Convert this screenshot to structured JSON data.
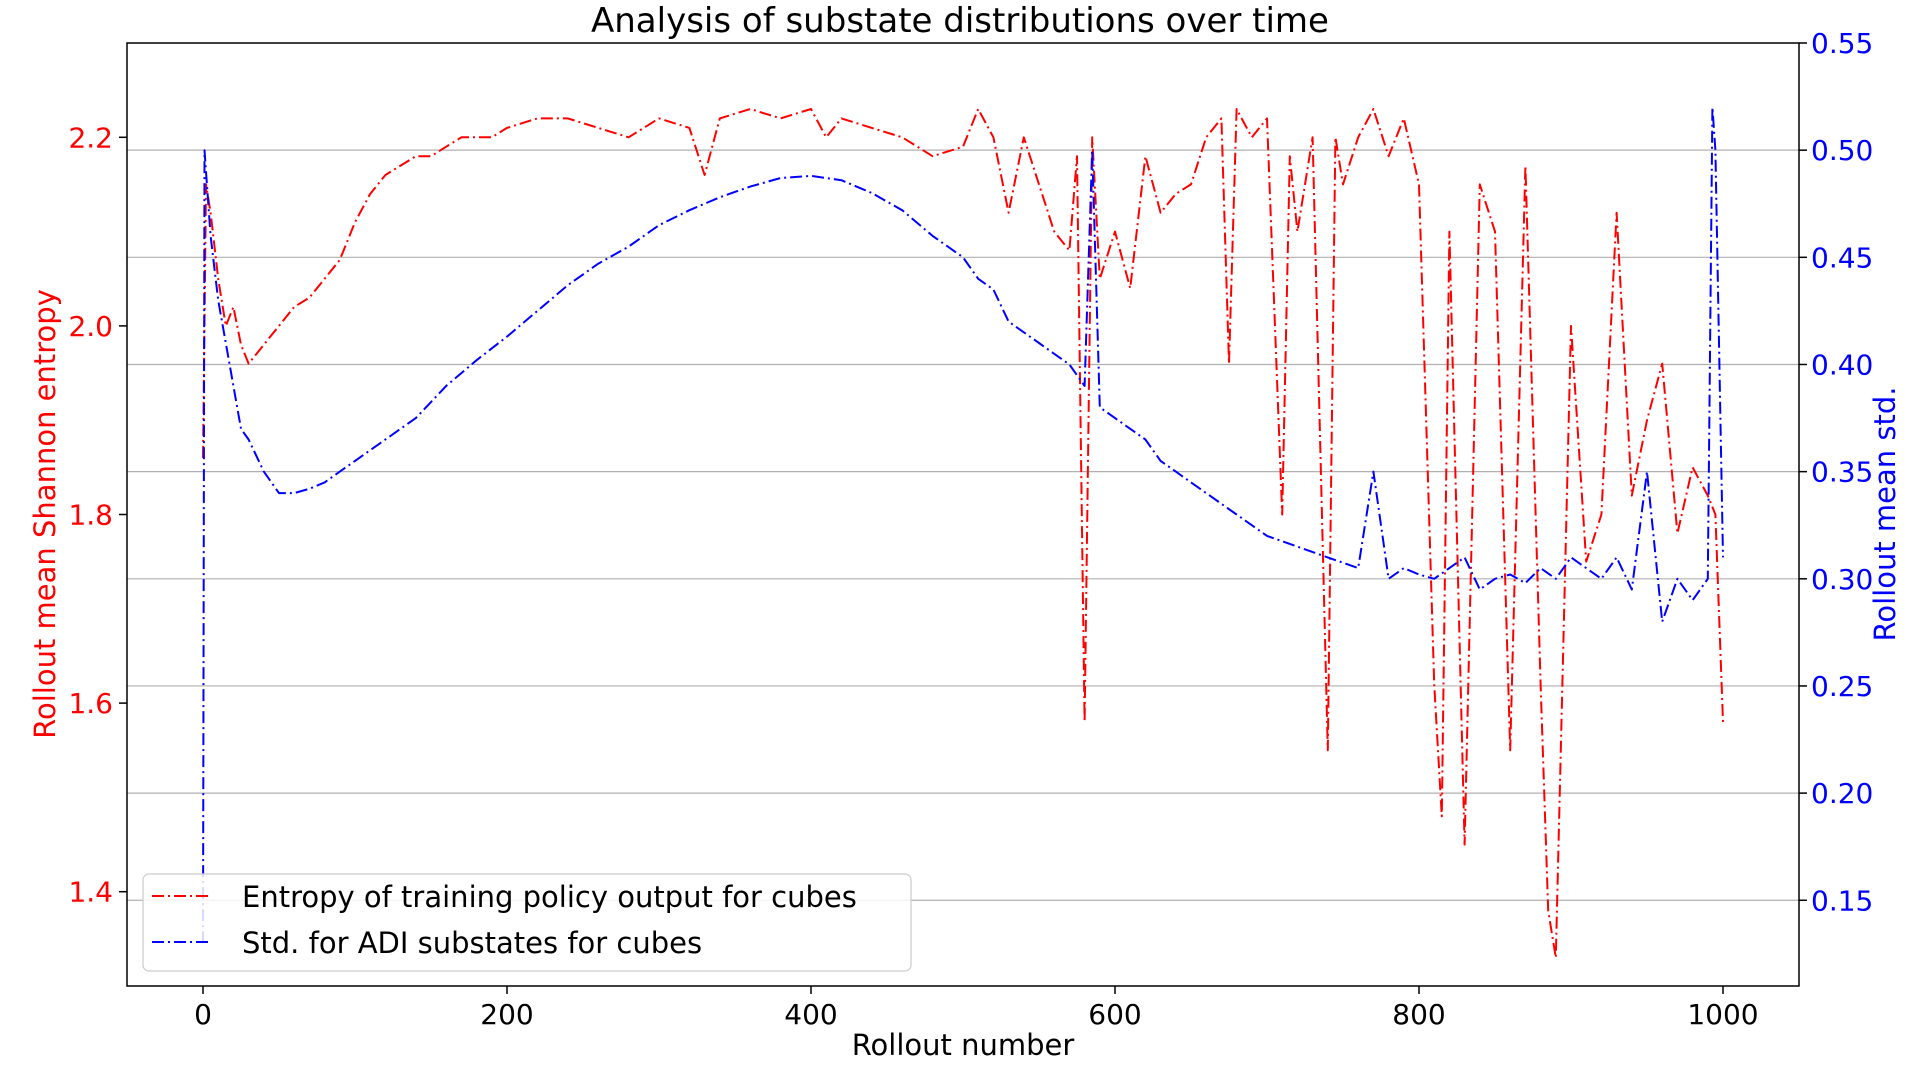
{
  "chart_data": {
    "type": "line",
    "title": "Analysis of substate distributions over time",
    "xlabel": "Rollout number",
    "ylabel_left": "Rollout mean Shannon entropy",
    "ylabel_right": "Rollout mean std.",
    "xlim": [
      -50,
      1050
    ],
    "ylim_left": [
      1.3,
      2.3
    ],
    "ylim_right": [
      0.11,
      0.55
    ],
    "x_ticks": [
      0,
      200,
      400,
      600,
      800,
      1000
    ],
    "y_ticks_left": [
      1.4,
      1.6,
      1.8,
      2.0,
      2.2
    ],
    "y_ticks_right": [
      0.15,
      0.2,
      0.25,
      0.3,
      0.35,
      0.4,
      0.45,
      0.5,
      0.55
    ],
    "y_tick_labels_left": [
      "1.4",
      "1.6",
      "1.8",
      "2.0",
      "2.2"
    ],
    "y_tick_labels_right": [
      "0.15",
      "0.20",
      "0.25",
      "0.30",
      "0.35",
      "0.40",
      "0.45",
      "0.50",
      "0.55"
    ],
    "grid": "horizontal lines at right-axis ticks",
    "legend_position": "lower-left",
    "colors": {
      "left_axis": "#ff0000",
      "right_axis": "#0000ff"
    },
    "series": [
      {
        "name": "Entropy of training policy output for cubes",
        "axis": "left",
        "color": "#ff0000",
        "line_style": "dash-dot",
        "x": [
          0,
          2,
          5,
          10,
          15,
          20,
          25,
          30,
          35,
          40,
          45,
          50,
          60,
          70,
          80,
          90,
          100,
          110,
          120,
          130,
          140,
          150,
          160,
          170,
          180,
          190,
          200,
          220,
          240,
          260,
          280,
          300,
          320,
          330,
          340,
          360,
          380,
          400,
          410,
          420,
          440,
          460,
          480,
          500,
          510,
          520,
          530,
          540,
          550,
          560,
          570,
          575,
          580,
          585,
          590,
          600,
          610,
          620,
          630,
          640,
          650,
          660,
          670,
          675,
          680,
          690,
          700,
          710,
          715,
          720,
          730,
          740,
          745,
          750,
          760,
          770,
          780,
          790,
          800,
          810,
          815,
          820,
          830,
          840,
          850,
          860,
          870,
          880,
          885,
          890,
          900,
          910,
          920,
          930,
          940,
          950,
          960,
          970,
          980,
          990,
          995,
          1000
        ],
        "y": [
          1.86,
          2.15,
          2.12,
          2.05,
          2.0,
          2.02,
          1.98,
          1.96,
          1.97,
          1.98,
          1.99,
          2.0,
          2.02,
          2.03,
          2.05,
          2.07,
          2.11,
          2.14,
          2.16,
          2.17,
          2.18,
          2.18,
          2.19,
          2.2,
          2.2,
          2.2,
          2.21,
          2.22,
          2.22,
          2.21,
          2.2,
          2.22,
          2.21,
          2.16,
          2.22,
          2.23,
          2.22,
          2.23,
          2.2,
          2.22,
          2.21,
          2.2,
          2.18,
          2.19,
          2.23,
          2.2,
          2.12,
          2.2,
          2.15,
          2.1,
          2.08,
          2.18,
          1.58,
          2.2,
          2.05,
          2.1,
          2.04,
          2.18,
          2.12,
          2.14,
          2.15,
          2.2,
          2.22,
          1.96,
          2.23,
          2.2,
          2.22,
          1.8,
          2.18,
          2.1,
          2.2,
          1.55,
          2.2,
          2.15,
          2.2,
          2.23,
          2.18,
          2.22,
          2.15,
          1.62,
          1.48,
          2.1,
          1.45,
          2.15,
          2.1,
          1.55,
          2.17,
          1.62,
          1.38,
          1.33,
          2.0,
          1.75,
          1.8,
          2.12,
          1.82,
          1.9,
          1.96,
          1.78,
          1.85,
          1.82,
          1.8,
          1.58
        ]
      },
      {
        "name": "Std. for ADI substates for cubes",
        "axis": "right",
        "color": "#0000ff",
        "line_style": "dash-dot",
        "x": [
          0,
          1,
          2,
          5,
          10,
          15,
          20,
          25,
          30,
          40,
          50,
          60,
          70,
          80,
          90,
          100,
          120,
          140,
          160,
          180,
          200,
          220,
          240,
          260,
          280,
          300,
          320,
          340,
          360,
          380,
          400,
          420,
          440,
          460,
          480,
          490,
          500,
          510,
          520,
          530,
          540,
          550,
          560,
          570,
          580,
          585,
          590,
          600,
          610,
          620,
          630,
          640,
          650,
          660,
          670,
          680,
          690,
          700,
          720,
          740,
          760,
          770,
          780,
          790,
          800,
          810,
          820,
          830,
          840,
          850,
          860,
          870,
          880,
          890,
          900,
          910,
          920,
          930,
          940,
          950,
          960,
          970,
          980,
          990,
          993,
          995,
          1000
        ],
        "y": [
          0.13,
          0.5,
          0.49,
          0.46,
          0.43,
          0.41,
          0.39,
          0.37,
          0.365,
          0.35,
          0.34,
          0.34,
          0.342,
          0.345,
          0.35,
          0.355,
          0.365,
          0.375,
          0.39,
          0.402,
          0.413,
          0.425,
          0.437,
          0.447,
          0.455,
          0.465,
          0.472,
          0.478,
          0.483,
          0.487,
          0.488,
          0.486,
          0.48,
          0.472,
          0.46,
          0.455,
          0.45,
          0.44,
          0.435,
          0.42,
          0.415,
          0.41,
          0.405,
          0.4,
          0.39,
          0.5,
          0.38,
          0.375,
          0.37,
          0.365,
          0.355,
          0.35,
          0.345,
          0.34,
          0.335,
          0.33,
          0.325,
          0.32,
          0.315,
          0.31,
          0.305,
          0.35,
          0.3,
          0.305,
          0.302,
          0.3,
          0.305,
          0.31,
          0.295,
          0.3,
          0.302,
          0.298,
          0.305,
          0.3,
          0.31,
          0.305,
          0.3,
          0.31,
          0.295,
          0.35,
          0.28,
          0.3,
          0.29,
          0.3,
          0.52,
          0.5,
          0.31
        ]
      }
    ]
  }
}
